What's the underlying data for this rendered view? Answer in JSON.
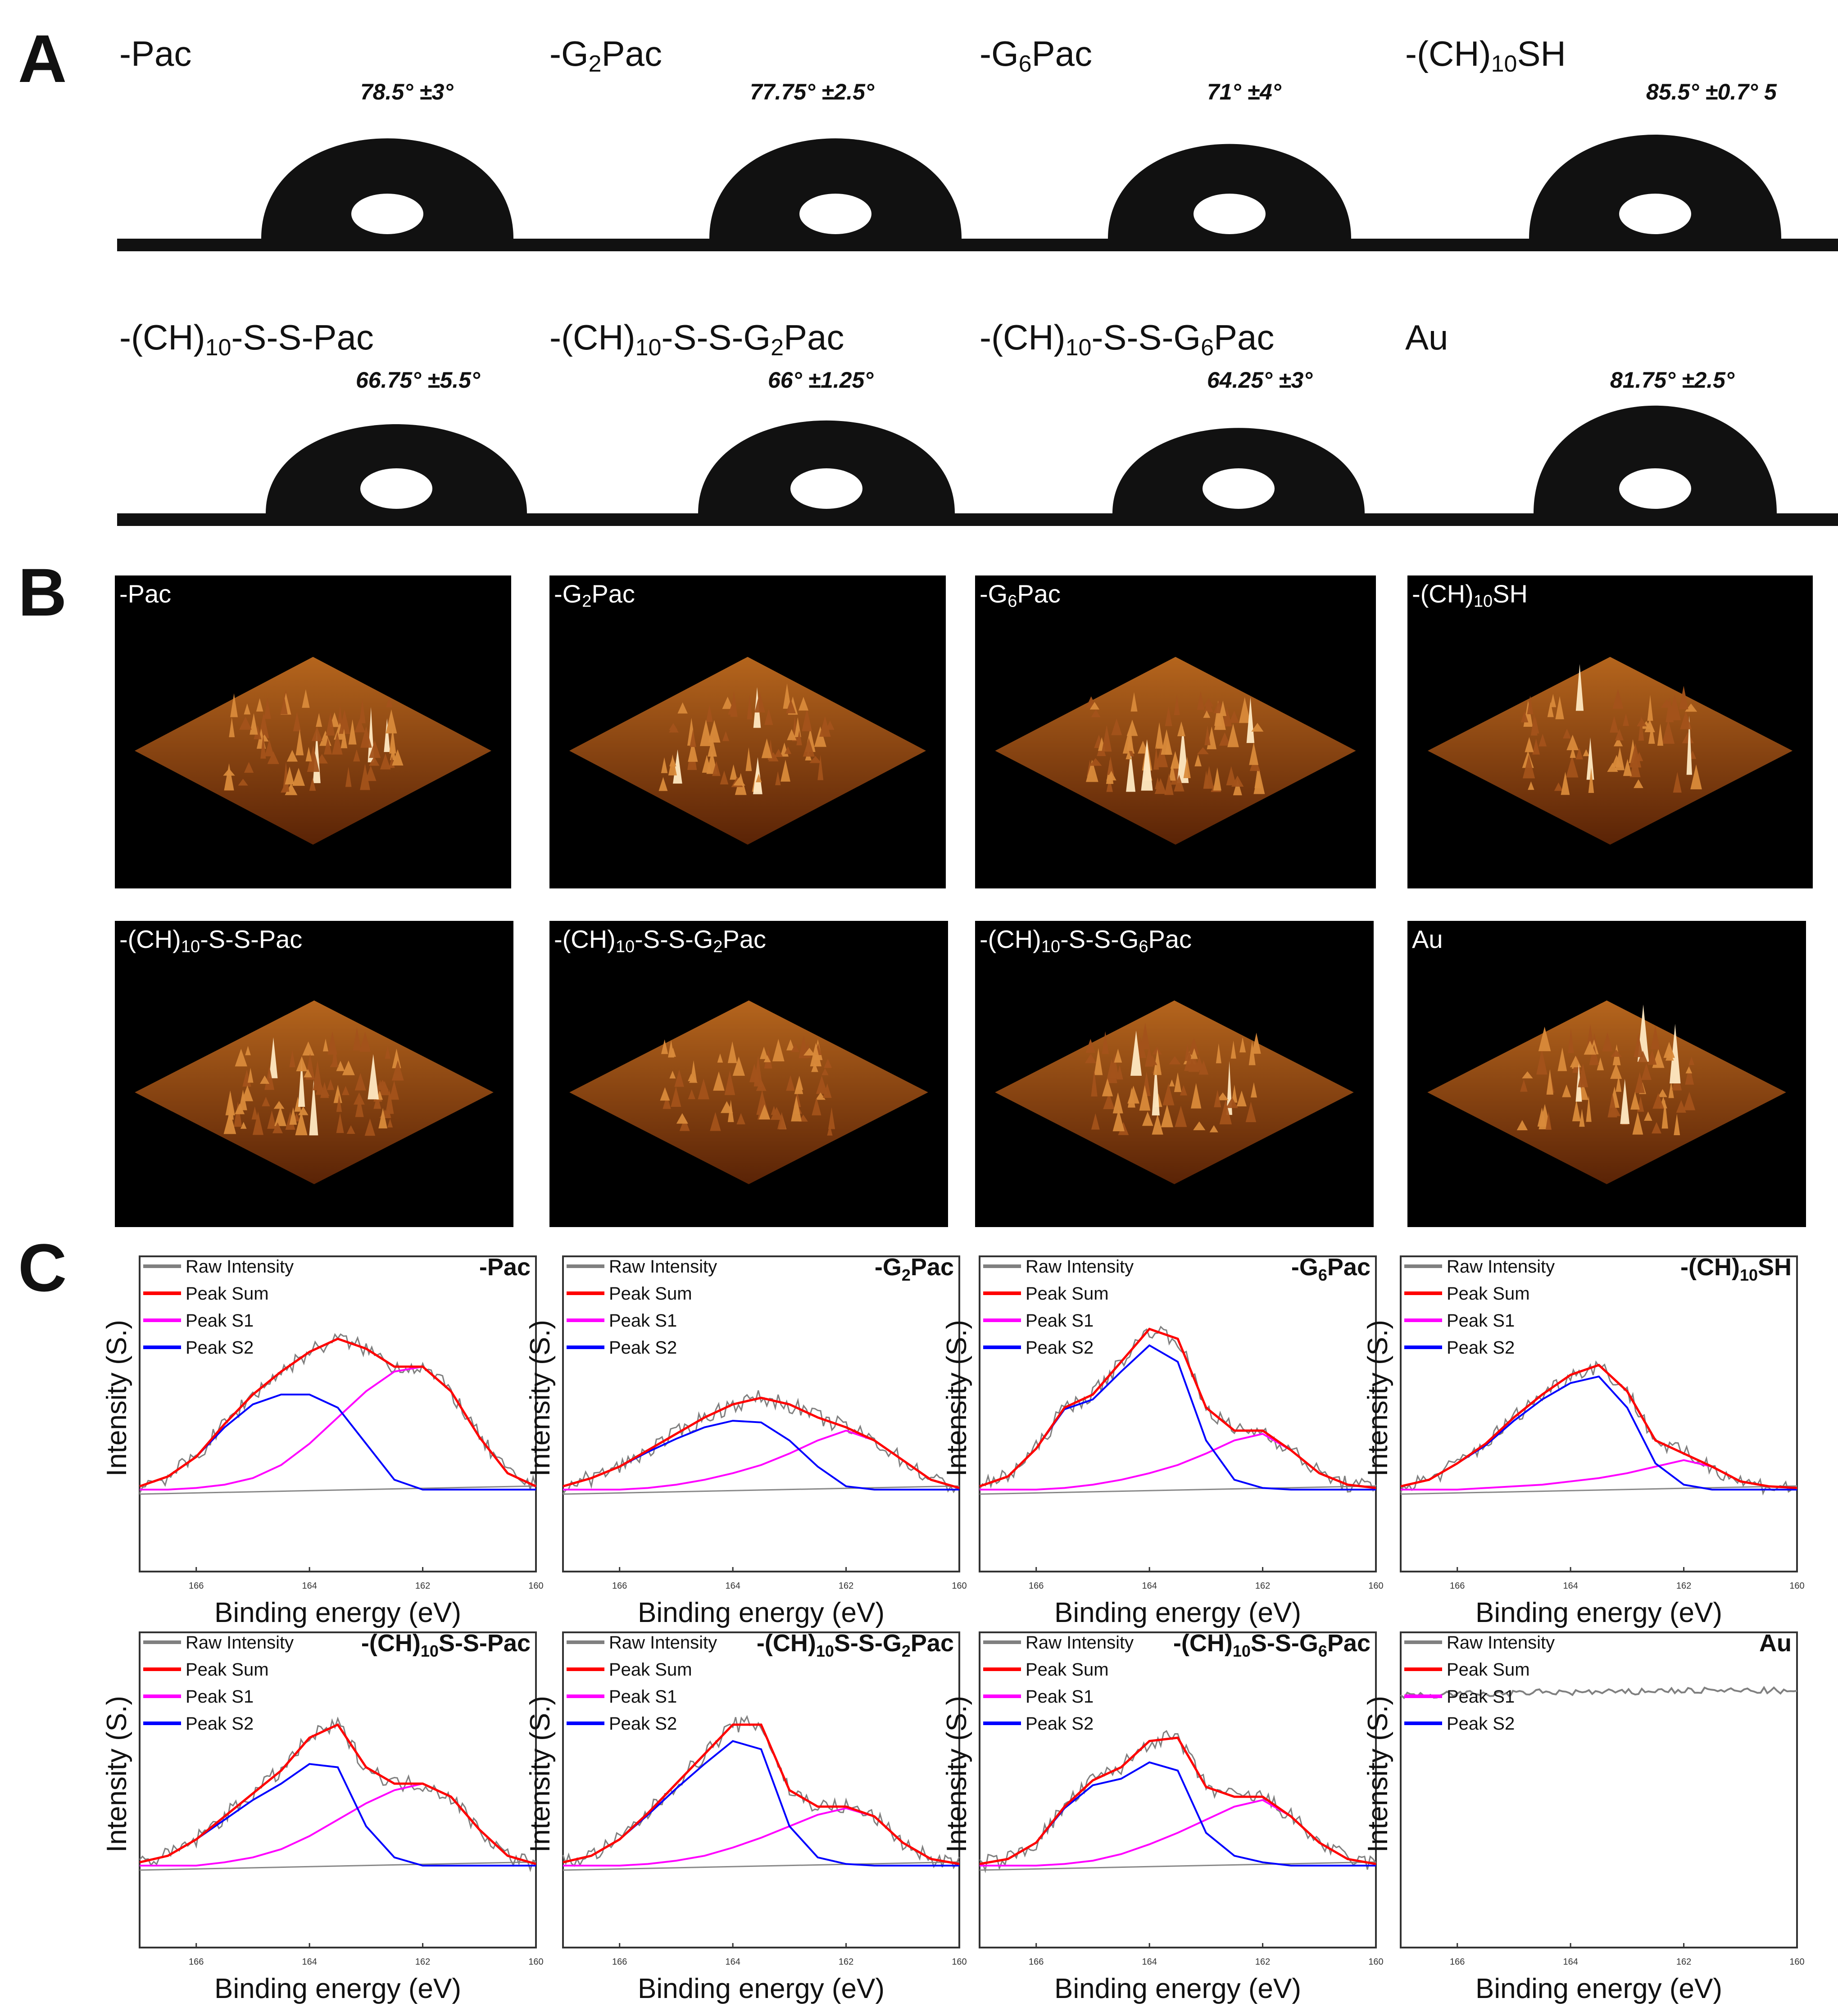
{
  "panels": [
    "A",
    "B",
    "C"
  ],
  "angles": [
    "78.5° ±3°",
    "77.75° ±2.5°",
    "71° ±4°",
    "85.5° ±0.7° 5",
    "66.75° ±5.5°",
    "66° ±1.25°",
    "64.25° ±3°",
    "81.75° ±2.5°"
  ],
  "samples": [
    {
      "pre": "-Pac"
    },
    {
      "pre": "-G",
      "sub": "2",
      "post": "Pac"
    },
    {
      "pre": "-G",
      "sub": "6",
      "post": "Pac"
    },
    {
      "pre": "-(CH)",
      "sub": "10",
      "post": "SH"
    },
    {
      "pre": "-(CH)",
      "sub": "10",
      "post": "-S-S-Pac"
    },
    {
      "pre": "-(CH)",
      "sub": "10",
      "post": "-S-S-G",
      "sub2": "2",
      "post2": "Pac"
    },
    {
      "pre": "-(CH)",
      "sub": "10",
      "post": "-S-S-G",
      "sub2": "6",
      "post2": "Pac"
    },
    {
      "pre": "Au"
    }
  ],
  "xps_titles": [
    {
      "pre": "-Pac"
    },
    {
      "pre": "-G",
      "sub": "2",
      "post": "Pac"
    },
    {
      "pre": "-G",
      "sub": "6",
      "post": "Pac"
    },
    {
      "pre": "-(CH)",
      "sub": "10",
      "post": "SH"
    },
    {
      "pre": "-(CH)",
      "sub": "10",
      "post": "S-S-Pac"
    },
    {
      "pre": "-(CH)",
      "sub": "10",
      "post": "S-S-G",
      "sub2": "2",
      "post2": "Pac"
    },
    {
      "pre": "-(CH)",
      "sub": "10",
      "post": "S-S-G",
      "sub2": "6",
      "post2": "Pac"
    },
    {
      "pre": "Au"
    }
  ],
  "colors": {
    "raw": "#808080",
    "sum": "#ff0000",
    "s1": "#ff00ff",
    "s2": "#0000ff",
    "afm_base": "#7a3208",
    "afm_peak": "#ffe9c2"
  },
  "chart_data": {
    "type": "line",
    "xlabel": "Binding energy (eV)",
    "ylabel": "Intensity (S.)",
    "xlim": [
      167,
      160
    ],
    "xticks": [
      "166",
      "164",
      "162",
      "160"
    ],
    "legend": [
      "Raw Intensity",
      "Peak Sum",
      "Peak S1",
      "Peak S2"
    ],
    "charts": [
      {
        "title": "-Pac",
        "x": [
          167,
          166.5,
          166,
          165.5,
          165,
          164.5,
          164,
          163.5,
          163,
          162.5,
          162,
          161.5,
          161,
          160.5,
          160
        ],
        "peak_sum": [
          0.02,
          0.08,
          0.2,
          0.4,
          0.58,
          0.72,
          0.84,
          0.92,
          0.86,
          0.75,
          0.75,
          0.6,
          0.32,
          0.1,
          0.02
        ],
        "peak_s1": [
          0,
          0,
          0.01,
          0.03,
          0.07,
          0.15,
          0.28,
          0.44,
          0.6,
          0.72,
          0.75,
          0.6,
          0.32,
          0.1,
          0.02
        ],
        "peak_s2": [
          0.02,
          0.08,
          0.2,
          0.38,
          0.52,
          0.58,
          0.58,
          0.5,
          0.28,
          0.06,
          0,
          0,
          0,
          0,
          0
        ]
      },
      {
        "title": "-G2Pac",
        "x": [
          167,
          166.5,
          166,
          165.5,
          165,
          164.5,
          164,
          163.5,
          163,
          162.5,
          162,
          161.5,
          161,
          160.5,
          160
        ],
        "peak_sum": [
          0.02,
          0.07,
          0.14,
          0.24,
          0.34,
          0.44,
          0.52,
          0.56,
          0.52,
          0.44,
          0.38,
          0.3,
          0.18,
          0.06,
          0.01
        ],
        "peak_s1": [
          0,
          0,
          0,
          0.01,
          0.03,
          0.06,
          0.1,
          0.15,
          0.22,
          0.3,
          0.36,
          0.3,
          0.18,
          0.06,
          0.01
        ],
        "peak_s2": [
          0.02,
          0.07,
          0.14,
          0.23,
          0.31,
          0.38,
          0.42,
          0.41,
          0.3,
          0.14,
          0.02,
          0,
          0,
          0,
          0
        ]
      },
      {
        "title": "-G6Pac",
        "x": [
          167,
          166.5,
          166,
          165.5,
          165,
          164.5,
          164,
          163.5,
          163,
          162.5,
          162,
          161.5,
          161,
          160.5,
          160
        ],
        "peak_sum": [
          0.02,
          0.08,
          0.25,
          0.5,
          0.58,
          0.78,
          0.98,
          0.92,
          0.5,
          0.36,
          0.36,
          0.24,
          0.1,
          0.03,
          0.01
        ],
        "peak_s1": [
          0,
          0,
          0,
          0.01,
          0.03,
          0.06,
          0.1,
          0.15,
          0.22,
          0.3,
          0.34,
          0.24,
          0.1,
          0.03,
          0.01
        ],
        "peak_s2": [
          0.02,
          0.08,
          0.25,
          0.49,
          0.55,
          0.72,
          0.88,
          0.78,
          0.3,
          0.06,
          0.01,
          0,
          0,
          0,
          0
        ]
      },
      {
        "title": "-(CH)10SH",
        "x": [
          167,
          166.5,
          166,
          165.5,
          165,
          164.5,
          164,
          163.5,
          163,
          162.5,
          162,
          161.5,
          161,
          160.5,
          160
        ],
        "peak_sum": [
          0.02,
          0.06,
          0.16,
          0.28,
          0.44,
          0.58,
          0.7,
          0.76,
          0.6,
          0.3,
          0.22,
          0.14,
          0.05,
          0.02,
          0.01
        ],
        "peak_s1": [
          0,
          0,
          0,
          0.01,
          0.02,
          0.03,
          0.05,
          0.07,
          0.1,
          0.14,
          0.18,
          0.14,
          0.05,
          0.02,
          0.01
        ],
        "peak_s2": [
          0.02,
          0.06,
          0.16,
          0.27,
          0.42,
          0.55,
          0.65,
          0.69,
          0.5,
          0.16,
          0.03,
          0,
          0,
          0,
          0
        ]
      },
      {
        "title": "-(CH)10S-S-Pac",
        "x": [
          167,
          166.5,
          166,
          165.5,
          165,
          164.5,
          164,
          163.5,
          163,
          162.5,
          162,
          161.5,
          161,
          160.5,
          160
        ],
        "peak_sum": [
          0.02,
          0.06,
          0.16,
          0.3,
          0.44,
          0.58,
          0.78,
          0.86,
          0.6,
          0.5,
          0.5,
          0.42,
          0.22,
          0.06,
          0.01
        ],
        "peak_s1": [
          0,
          0,
          0,
          0.02,
          0.05,
          0.1,
          0.18,
          0.28,
          0.38,
          0.46,
          0.5,
          0.42,
          0.22,
          0.06,
          0.01
        ],
        "peak_s2": [
          0.02,
          0.06,
          0.16,
          0.28,
          0.4,
          0.5,
          0.62,
          0.6,
          0.24,
          0.05,
          0,
          0,
          0,
          0,
          0
        ]
      },
      {
        "title": "-(CH)10S-S-G2Pac",
        "x": [
          167,
          166.5,
          166,
          165.5,
          165,
          164.5,
          164,
          163.5,
          163,
          162.5,
          162,
          161.5,
          161,
          160.5,
          160
        ],
        "peak_sum": [
          0.02,
          0.06,
          0.16,
          0.32,
          0.5,
          0.68,
          0.86,
          0.86,
          0.46,
          0.36,
          0.36,
          0.3,
          0.14,
          0.04,
          0.01
        ],
        "peak_s1": [
          0,
          0,
          0,
          0.01,
          0.03,
          0.06,
          0.11,
          0.17,
          0.24,
          0.31,
          0.35,
          0.3,
          0.14,
          0.04,
          0.01
        ],
        "peak_s2": [
          0.02,
          0.06,
          0.16,
          0.31,
          0.47,
          0.62,
          0.76,
          0.71,
          0.24,
          0.05,
          0.01,
          0,
          0,
          0,
          0
        ]
      },
      {
        "title": "-(CH)10S-S-G6Pac",
        "x": [
          167,
          166.5,
          166,
          165.5,
          165,
          164.5,
          164,
          163.5,
          163,
          162.5,
          162,
          161.5,
          161,
          160.5,
          160
        ],
        "peak_sum": [
          0.01,
          0.04,
          0.14,
          0.36,
          0.52,
          0.6,
          0.76,
          0.78,
          0.48,
          0.42,
          0.42,
          0.3,
          0.14,
          0.04,
          0.01
        ],
        "peak_s1": [
          0,
          0,
          0,
          0.01,
          0.03,
          0.07,
          0.13,
          0.2,
          0.28,
          0.36,
          0.4,
          0.3,
          0.14,
          0.04,
          0.01
        ],
        "peak_s2": [
          0.01,
          0.04,
          0.14,
          0.35,
          0.49,
          0.53,
          0.63,
          0.58,
          0.2,
          0.06,
          0.02,
          0,
          0,
          0,
          0
        ]
      },
      {
        "title": "Au",
        "x": [
          167,
          166.5,
          166,
          165.5,
          165,
          164.5,
          164,
          163.5,
          163,
          162.5,
          162,
          161.5,
          161,
          160.5,
          160
        ],
        "raw_only": true,
        "raw_level": [
          0.8,
          0.8,
          0.81,
          0.81,
          0.81,
          0.82,
          0.82,
          0.82,
          0.82,
          0.83,
          0.83,
          0.83,
          0.83,
          0.83,
          0.82
        ]
      }
    ]
  }
}
